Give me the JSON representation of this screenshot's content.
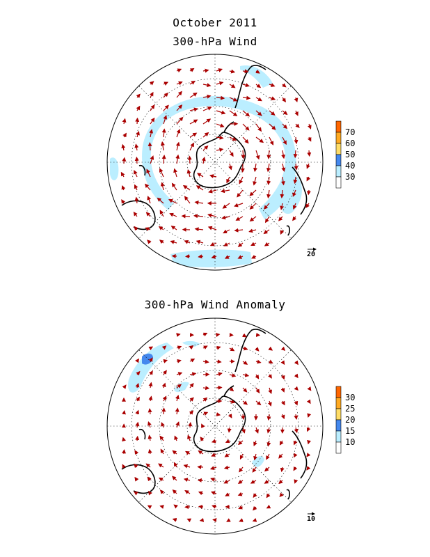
{
  "header": {
    "title": "October 2011",
    "panel1_title": "300-hPa Wind",
    "panel2_title": "300-hPa Wind Anomaly"
  },
  "panel1": {
    "colorbar_labels": [
      "70",
      "60",
      "50",
      "40",
      "30"
    ],
    "colorbar_colors": [
      "#ff6600",
      "#ffaa22",
      "#ffdd66",
      "#4488ee",
      "#bbeeff",
      "#ffffff"
    ],
    "reference_vector": "20"
  },
  "panel2": {
    "colorbar_labels": [
      "30",
      "25",
      "20",
      "15",
      "10"
    ],
    "colorbar_colors": [
      "#ff6600",
      "#ffaa22",
      "#ffdd66",
      "#4488ee",
      "#bbeeff",
      "#ffffff"
    ],
    "reference_vector": "10"
  },
  "colors": {
    "arrow": "#aa0000",
    "shade_light": "#bbeeff",
    "shade_dark": "#4488ee",
    "coast": "#000000"
  }
}
